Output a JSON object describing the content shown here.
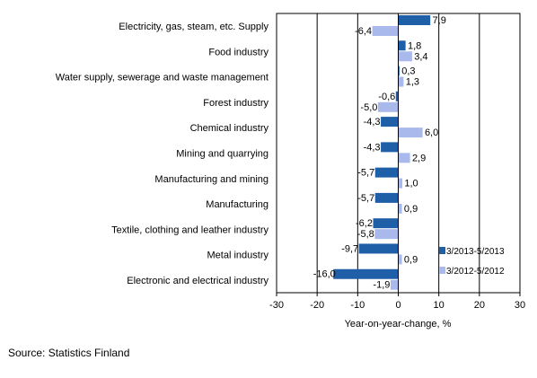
{
  "chart_data": {
    "type": "bar",
    "orientation": "horizontal",
    "categories": [
      "Electricity, gas, steam, etc. Supply",
      "Food industry",
      "Water supply, sewerage and waste management",
      "Forest industry",
      "Chemical industry",
      "Mining and quarrying",
      "Manufacturing and mining",
      "Manufacturing",
      "Textile, clothing and leather industry",
      "Metal industry",
      "Electronic and electrical industry"
    ],
    "series": [
      {
        "name": "3/2013-5/2013",
        "color": "#1f5fa8",
        "values": [
          7.9,
          1.8,
          0.3,
          -0.6,
          -4.3,
          -4.3,
          -5.7,
          -5.7,
          -6.2,
          -9.7,
          -16.0
        ],
        "labels": [
          "7,9",
          "1,8",
          "0,3",
          "-0,6",
          "-4,3",
          "-4,3",
          "-5,7",
          "-5,7",
          "-6,2",
          "-9,7",
          "-16,0"
        ]
      },
      {
        "name": "3/2012-5/2012",
        "color": "#a9b9ec",
        "values": [
          -6.4,
          3.4,
          1.3,
          -5.0,
          6.0,
          2.9,
          1.0,
          0.9,
          -5.8,
          0.9,
          -1.9
        ],
        "labels": [
          "-6,4",
          "3,4",
          "1,3",
          "-5,0",
          "6,0",
          "2,9",
          "1,0",
          "0,9",
          "-5,8",
          "0,9",
          "-1,9"
        ]
      }
    ],
    "xlim": [
      -30,
      30
    ],
    "xticks": [
      -30,
      -20,
      -10,
      0,
      10,
      20,
      30
    ],
    "xlabel": "Year-on-year-change, %",
    "grid": "vertical",
    "legend_position": "bottom-right"
  },
  "source": "Source: Statistics Finland"
}
